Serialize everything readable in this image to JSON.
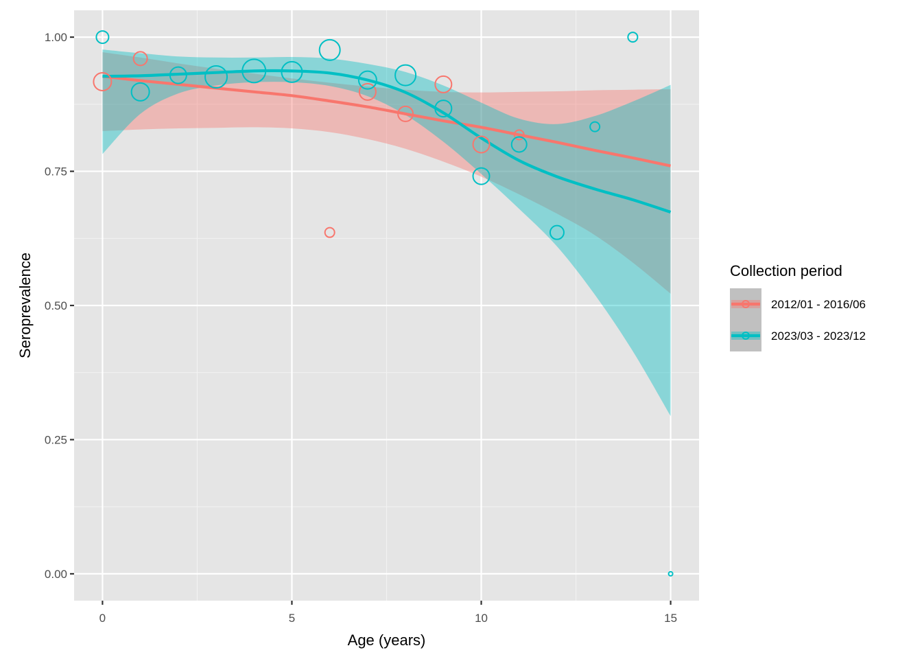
{
  "chart_data": {
    "type": "scatter",
    "title": "",
    "xlabel": "Age (years)",
    "ylabel": "Seroprevalence",
    "xlim": [
      -0.75,
      15.75
    ],
    "ylim": [
      -0.05,
      1.05
    ],
    "x_ticks": [
      0,
      5,
      10,
      15
    ],
    "x_tick_labels": [
      "0",
      "5",
      "10",
      "15"
    ],
    "y_ticks": [
      0,
      0.25,
      0.5,
      0.75,
      1.0
    ],
    "y_tick_labels": [
      "0.00",
      "0.25",
      "0.50",
      "0.75",
      "1.00"
    ],
    "grid": true,
    "legend": {
      "title": "Collection period",
      "placement": "right"
    },
    "series": [
      {
        "name": "2012/01 - 2016/06",
        "color": "#F8766D",
        "points": [
          {
            "x": 0,
            "y": 0.917,
            "size": 13
          },
          {
            "x": 1,
            "y": 0.96,
            "size": 10
          },
          {
            "x": 6,
            "y": 0.636,
            "size": 7
          },
          {
            "x": 7,
            "y": 0.898,
            "size": 12
          },
          {
            "x": 8,
            "y": 0.857,
            "size": 11
          },
          {
            "x": 9,
            "y": 0.912,
            "size": 12
          },
          {
            "x": 10,
            "y": 0.8,
            "size": 12
          },
          {
            "x": 11,
            "y": 0.818,
            "size": 7
          }
        ],
        "smooth": {
          "x": [
            0,
            1,
            2,
            3,
            4,
            5,
            6,
            7,
            8,
            9,
            10,
            11,
            12,
            13,
            14,
            15
          ],
          "fit": [
            0.927,
            0.919,
            0.912,
            0.905,
            0.898,
            0.891,
            0.881,
            0.87,
            0.857,
            0.844,
            0.832,
            0.818,
            0.804,
            0.789,
            0.775,
            0.76
          ],
          "lower": [
            0.825,
            0.828,
            0.83,
            0.831,
            0.832,
            0.83,
            0.823,
            0.81,
            0.792,
            0.768,
            0.74,
            0.707,
            0.671,
            0.631,
            0.58,
            0.522
          ],
          "upper": [
            0.972,
            0.962,
            0.951,
            0.941,
            0.932,
            0.923,
            0.915,
            0.908,
            0.902,
            0.898,
            0.897,
            0.898,
            0.899,
            0.901,
            0.902,
            0.903
          ]
        }
      },
      {
        "name": "2023/03 - 2023/12",
        "color": "#00BFC4",
        "points": [
          {
            "x": 0,
            "y": 1.0,
            "size": 9
          },
          {
            "x": 1,
            "y": 0.898,
            "size": 13
          },
          {
            "x": 2,
            "y": 0.929,
            "size": 12
          },
          {
            "x": 3,
            "y": 0.926,
            "size": 16
          },
          {
            "x": 4,
            "y": 0.937,
            "size": 17
          },
          {
            "x": 5,
            "y": 0.935,
            "size": 15
          },
          {
            "x": 6,
            "y": 0.976,
            "size": 15
          },
          {
            "x": 7,
            "y": 0.92,
            "size": 13
          },
          {
            "x": 8,
            "y": 0.929,
            "size": 15
          },
          {
            "x": 9,
            "y": 0.867,
            "size": 12
          },
          {
            "x": 10,
            "y": 0.741,
            "size": 12
          },
          {
            "x": 11,
            "y": 0.8,
            "size": 11
          },
          {
            "x": 12,
            "y": 0.636,
            "size": 10
          },
          {
            "x": 13,
            "y": 0.833,
            "size": 7
          },
          {
            "x": 14,
            "y": 1.0,
            "size": 7
          },
          {
            "x": 15,
            "y": 0.0,
            "size": 3
          }
        ],
        "smooth": {
          "x": [
            0,
            1,
            2,
            3,
            4,
            5,
            6,
            7,
            8,
            9,
            10,
            11,
            12,
            13,
            14,
            15
          ],
          "fit": [
            0.927,
            0.928,
            0.931,
            0.934,
            0.937,
            0.937,
            0.933,
            0.92,
            0.897,
            0.859,
            0.812,
            0.77,
            0.74,
            0.717,
            0.697,
            0.674
          ],
          "lower": [
            0.782,
            0.857,
            0.895,
            0.91,
            0.916,
            0.916,
            0.909,
            0.89,
            0.855,
            0.805,
            0.745,
            0.68,
            0.61,
            0.52,
            0.415,
            0.294
          ],
          "upper": [
            0.977,
            0.97,
            0.964,
            0.962,
            0.962,
            0.963,
            0.96,
            0.95,
            0.935,
            0.91,
            0.878,
            0.848,
            0.838,
            0.853,
            0.88,
            0.911
          ]
        }
      }
    ]
  }
}
